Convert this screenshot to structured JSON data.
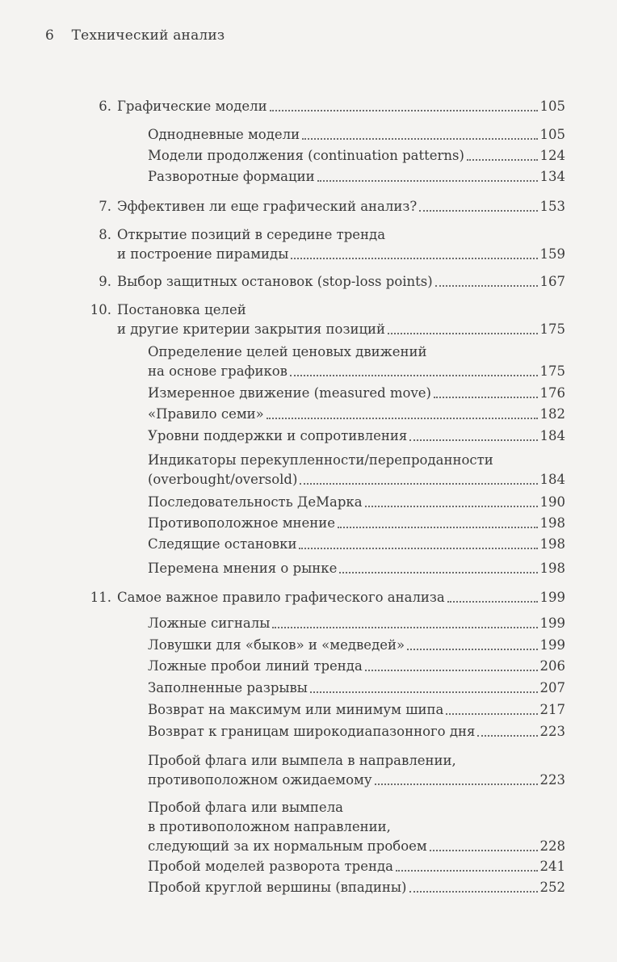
{
  "header": {
    "page_number": "6",
    "title": "Технический анализ"
  },
  "toc": [
    {
      "level": "main",
      "num": "6.",
      "lines": [
        "Графические модели"
      ],
      "page": "105"
    },
    {
      "level": "sub",
      "lines": [
        "Однодневные модели"
      ],
      "page": "105"
    },
    {
      "level": "sub",
      "lines": [
        "Модели продолжения (continuation patterns)"
      ],
      "page": "124"
    },
    {
      "level": "sub",
      "lines": [
        "Разворотные формации"
      ],
      "page": "134"
    },
    {
      "level": "main",
      "num": "7.",
      "lines": [
        "Эффективен ли еще графический анализ?"
      ],
      "page": "153"
    },
    {
      "level": "main",
      "num": "8.",
      "lines": [
        "Открытие позиций в середине тренда",
        "и построение пирамиды"
      ],
      "page": "159"
    },
    {
      "level": "main",
      "num": "9.",
      "lines": [
        "Выбор защитных остановок (stop-loss points)"
      ],
      "page": "167"
    },
    {
      "level": "main",
      "num": "10.",
      "lines": [
        "Постановка целей",
        "и другие критерии закрытия позиций"
      ],
      "page": "175"
    },
    {
      "level": "sub",
      "lines": [
        "Определение целей ценовых движений",
        "на основе графиков"
      ],
      "page": "175"
    },
    {
      "level": "sub",
      "lines": [
        "Измеренное движение (measured move)"
      ],
      "page": "176"
    },
    {
      "level": "sub",
      "lines": [
        "«Правило семи»"
      ],
      "page": "182"
    },
    {
      "level": "sub",
      "lines": [
        "Уровни поддержки и сопротивления"
      ],
      "page": "184"
    },
    {
      "level": "sub",
      "lines": [
        "Индикаторы перекупленности/перепроданности",
        "(overbought/oversold)"
      ],
      "page": "184"
    },
    {
      "level": "sub",
      "lines": [
        "Последовательность ДеМарка"
      ],
      "page": "190"
    },
    {
      "level": "sub",
      "lines": [
        "Противоположное мнение"
      ],
      "page": "198"
    },
    {
      "level": "sub",
      "lines": [
        "Следящие остановки"
      ],
      "page": "198"
    },
    {
      "level": "sub",
      "lines": [
        "Перемена мнения о рынке"
      ],
      "page": "198"
    },
    {
      "level": "main",
      "num": "11.",
      "lines": [
        "Самое важное правило графического анализа"
      ],
      "page": "199"
    },
    {
      "level": "sub",
      "lines": [
        "Ложные сигналы"
      ],
      "page": "199"
    },
    {
      "level": "sub",
      "lines": [
        "Ловушки для «быков» и «медведей»"
      ],
      "page": "199"
    },
    {
      "level": "sub",
      "lines": [
        "Ложные пробои линий тренда"
      ],
      "page": "206"
    },
    {
      "level": "sub",
      "lines": [
        "Заполненные разрывы"
      ],
      "page": "207"
    },
    {
      "level": "sub",
      "lines": [
        "Возврат на максимум или минимум шипа"
      ],
      "page": "217"
    },
    {
      "level": "sub",
      "lines": [
        "Возврат к границам широкодиапазонного дня"
      ],
      "page": "223"
    },
    {
      "level": "sub",
      "lines": [
        "Пробой флага или вымпела в направлении,",
        "противоположном ожидаемому"
      ],
      "page": "223"
    },
    {
      "level": "sub",
      "lines": [
        "Пробой флага или вымпела",
        "в противоположном направлении,",
        "следующий за их нормальным пробоем"
      ],
      "page": "228"
    },
    {
      "level": "sub",
      "lines": [
        "Пробой моделей разворота тренда"
      ],
      "page": "241"
    },
    {
      "level": "sub",
      "lines": [
        "Пробой круглой вершины (впадины)"
      ],
      "page": "252"
    }
  ]
}
